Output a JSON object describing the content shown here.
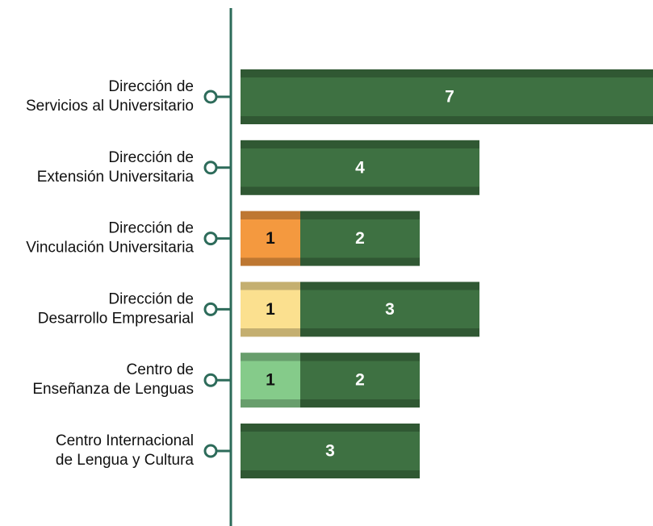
{
  "chart_data": {
    "type": "stacked-bar-horizontal",
    "categories": [
      [
        "Dirección de",
        "Servicios al Universitario"
      ],
      [
        "Dirección de",
        "Extensión Universitaria"
      ],
      [
        "Dirección de",
        "Vinculación Universitaria"
      ],
      [
        "Dirección de",
        "Desarrollo Empresarial"
      ],
      [
        "Centro de",
        "Enseñanza de Lenguas"
      ],
      [
        "Centro Internacional",
        "de Lengua y Cultura"
      ]
    ],
    "series": [
      {
        "colors": [
          null,
          null,
          "#f4993f",
          "#fbe08f",
          "#85cb8a",
          null
        ],
        "values": [
          null,
          null,
          1,
          1,
          1,
          null
        ]
      },
      {
        "color": "#3e7142",
        "values": [
          7,
          4,
          2,
          3,
          2,
          3
        ]
      }
    ]
  }
}
